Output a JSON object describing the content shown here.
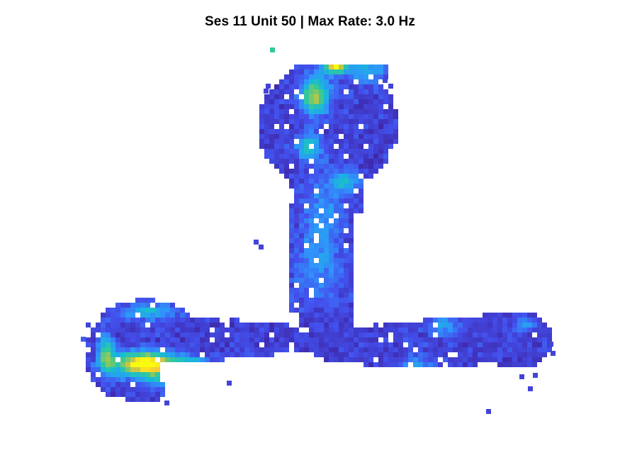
{
  "chart_data": {
    "type": "heatmap",
    "title": "Ses 11 Unit 50 | Max Rate: 3.0 Hz",
    "xlabel": "",
    "ylabel": "",
    "grid": false,
    "axes_visible": false,
    "colormap": "parula",
    "colormap_stops": [
      "#3e26a8",
      "#4351ee",
      "#2f95fb",
      "#17bbd6",
      "#35c89a",
      "#9fc94f",
      "#f7c13a",
      "#f9fb0e"
    ],
    "color_range_hz": [
      0,
      3.0
    ],
    "max_rate_hz": 3.0,
    "occupancy_mask": "linear track: bulb-shaped top arena, vertical stem, two curved lateral arms",
    "firing_fields": [
      {
        "region": "left arm, lower edge",
        "peak_rate_hz": 3.0
      },
      {
        "region": "top arena, upper center",
        "peak_rate_hz": 2.6
      },
      {
        "region": "top arena, center",
        "peak_rate_hz": 1.4
      }
    ]
  }
}
